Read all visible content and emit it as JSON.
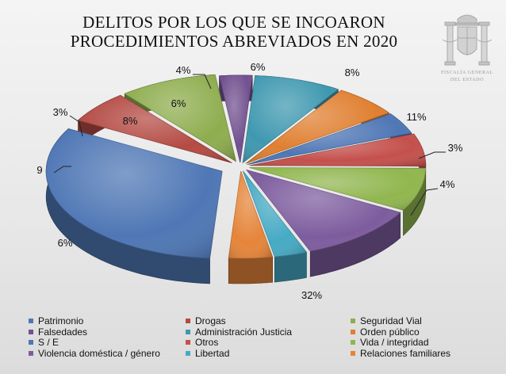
{
  "title": {
    "line1": "DELITOS POR LOS QUE SE INCOARON",
    "line2": "PROCEDIMIENTOS ABREVIADOS EN 2020"
  },
  "emblem": {
    "icon": "coat-of-arms-of-spain-icon",
    "text_line1": "FISCALÍA GENERAL",
    "text_line2": "DEL ESTADO"
  },
  "chart_data": {
    "type": "pie",
    "title": "DELITOS POR LOS QUE SE INCOARON PROCEDIMIENTOS ABREVIADOS EN 2020",
    "legend_position": "bottom",
    "slices": [
      {
        "name": "Patrimonio",
        "value": 32,
        "label": "32%",
        "color": "#4f77b5"
      },
      {
        "name": "Drogas",
        "value": 6,
        "label": "6%",
        "color": "#b44a43"
      },
      {
        "name": "Seguridad Vial",
        "value": 9,
        "label": "9",
        "color": "#8ead4e"
      },
      {
        "name": "Falsedades",
        "value": 3,
        "label": "3%",
        "color": "#71518f"
      },
      {
        "name": "Administración Justicia",
        "value": 8,
        "label": "8%",
        "color": "#3f98b0"
      },
      {
        "name": "Orden público",
        "value": 6,
        "label": "6%",
        "color": "#e07f30"
      },
      {
        "name": "S / E",
        "value": 4,
        "label": "4%",
        "color": "#4f77b5"
      },
      {
        "name": "Otros",
        "value": 6,
        "label": "6%",
        "color": "#c4504c"
      },
      {
        "name": "Vida / integridad",
        "value": 8,
        "label": "8%",
        "color": "#91b64f"
      },
      {
        "name": "Violencia doméstica / género",
        "value": 11,
        "label": "11%",
        "color": "#7d5c9e"
      },
      {
        "name": "Libertad",
        "value": 3,
        "label": "3%",
        "color": "#46aac4"
      },
      {
        "name": "Relaciones familiares",
        "value": 4,
        "label": "4%",
        "color": "#e5853a"
      }
    ]
  }
}
